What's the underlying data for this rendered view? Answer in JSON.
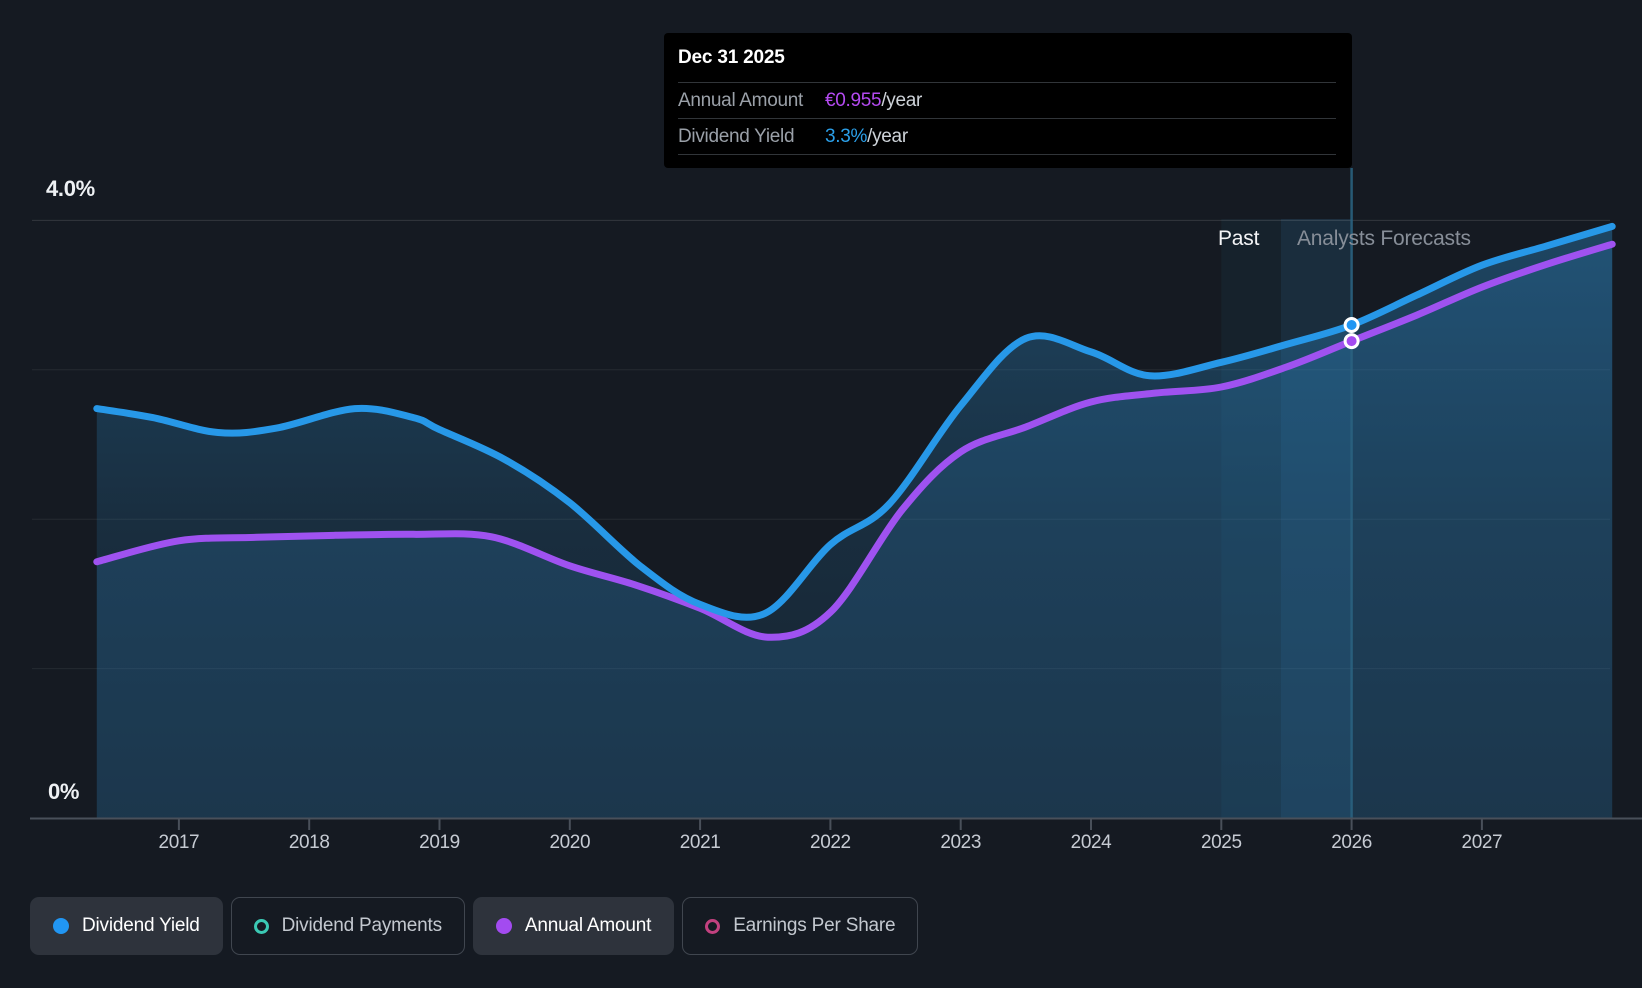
{
  "tooltip": {
    "date": "Dec 31 2025",
    "rows": [
      {
        "label": "Annual Amount",
        "value": "€0.955",
        "suffix": "/year"
      },
      {
        "label": "Dividend Yield",
        "value": "3.3%",
        "suffix": "/year"
      }
    ]
  },
  "annotations": {
    "past": "Past",
    "forecast": "Analysts Forecasts"
  },
  "legend": [
    {
      "label": "Dividend Yield",
      "marker": "dot",
      "color": "#2196f3",
      "active": true
    },
    {
      "label": "Dividend Payments",
      "marker": "ring",
      "color": "#3bc9b4",
      "active": false
    },
    {
      "label": "Annual Amount",
      "marker": "dot",
      "color": "#a34bf0",
      "active": true
    },
    {
      "label": "Earnings Per Share",
      "marker": "ring",
      "color": "#c2417f",
      "active": false
    }
  ],
  "chart_data": {
    "type": "area",
    "x_ticks": [
      "2017",
      "2018",
      "2019",
      "2020",
      "2021",
      "2022",
      "2023",
      "2024",
      "2025",
      "2026",
      "2027"
    ],
    "x_range": [
      2016.37,
      2028.0
    ],
    "y_axis": {
      "top_label": "4.0%",
      "bottom_label": "0%",
      "min": 0,
      "max": 4.0,
      "unit": "%",
      "gridlines_pct": [
        0,
        1,
        2,
        3,
        4
      ]
    },
    "highlight_band_years": [
      2025,
      2026
    ],
    "past_forecast_boundary_year": 2025.46,
    "legend_position": "bottom",
    "series": [
      {
        "name": "Dividend Yield",
        "unit": "%",
        "color": "#2798e8",
        "points": [
          [
            2016.37,
            2.74
          ],
          [
            2016.8,
            2.68
          ],
          [
            2017.3,
            2.58
          ],
          [
            2017.75,
            2.61
          ],
          [
            2018.35,
            2.74
          ],
          [
            2018.8,
            2.68
          ],
          [
            2019.0,
            2.6
          ],
          [
            2019.5,
            2.4
          ],
          [
            2020.0,
            2.11
          ],
          [
            2020.55,
            1.68
          ],
          [
            2021.0,
            1.43
          ],
          [
            2021.5,
            1.37
          ],
          [
            2022.0,
            1.83
          ],
          [
            2022.45,
            2.1
          ],
          [
            2023.0,
            2.76
          ],
          [
            2023.5,
            3.21
          ],
          [
            2024.0,
            3.12
          ],
          [
            2024.45,
            2.96
          ],
          [
            2025.0,
            3.05
          ],
          [
            2025.5,
            3.17
          ],
          [
            2026.0,
            3.3
          ],
          [
            2026.5,
            3.5
          ],
          [
            2027.0,
            3.7
          ],
          [
            2027.5,
            3.83
          ],
          [
            2028.0,
            3.96
          ]
        ]
      },
      {
        "name": "Annual Amount",
        "unit": "EUR",
        "color": "#9f52f0",
        "points": [
          [
            2016.37,
            0.513
          ],
          [
            2017.0,
            0.555
          ],
          [
            2017.6,
            0.562
          ],
          [
            2018.2,
            0.566
          ],
          [
            2018.8,
            0.568
          ],
          [
            2019.4,
            0.563
          ],
          [
            2020.0,
            0.505
          ],
          [
            2020.5,
            0.467
          ],
          [
            2021.0,
            0.42
          ],
          [
            2021.52,
            0.362
          ],
          [
            2022.0,
            0.412
          ],
          [
            2022.55,
            0.617
          ],
          [
            2023.0,
            0.733
          ],
          [
            2023.5,
            0.783
          ],
          [
            2024.0,
            0.833
          ],
          [
            2024.5,
            0.851
          ],
          [
            2025.0,
            0.863
          ],
          [
            2025.5,
            0.903
          ],
          [
            2026.0,
            0.955
          ],
          [
            2026.5,
            1.007
          ],
          [
            2027.0,
            1.063
          ],
          [
            2027.5,
            1.109
          ],
          [
            2028.0,
            1.149
          ]
        ]
      }
    ],
    "markers": {
      "year": 2026,
      "date": "Dec 31 2025",
      "dividend_yield_pct": 3.3,
      "annual_amount_eur": 0.955
    }
  },
  "colors": {
    "background": "#151a22",
    "yield_line": "#2798e8",
    "amount_line": "#9f52f0",
    "tooltip_amount_value": "#b44af0",
    "tooltip_yield_value": "#2b9fe8",
    "highlight_band": "#3f97e0",
    "past_band": "#36b6d8"
  }
}
